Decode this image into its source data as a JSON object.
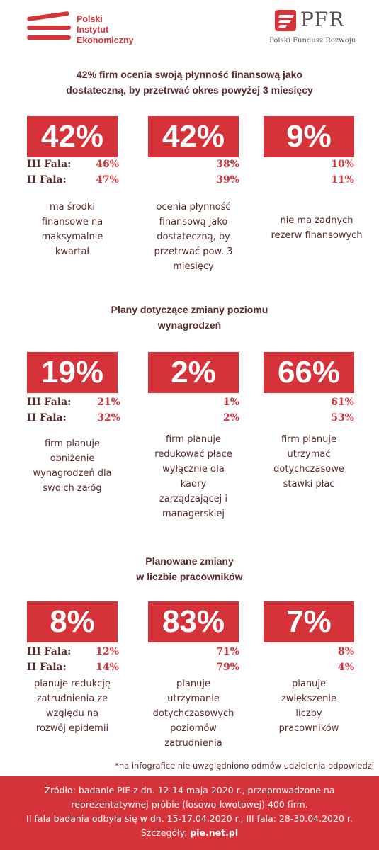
{
  "logos": {
    "pie": [
      "Polski",
      "Instytut",
      "Ekonomiczny"
    ],
    "pfr": {
      "name": "PFR",
      "subtitle": "Polski Fundusz Rozwoju"
    }
  },
  "labels": {
    "wave3": "III Fala:",
    "wave2": "II Fala:"
  },
  "sections": [
    {
      "title": [
        "42% firm ocenia swoją płynność finansową jako",
        "dostateczną, by przetrwać okres powyżej 3 miesięcy"
      ],
      "cards": [
        {
          "value": "42%",
          "wave3": "46%",
          "wave2": "47%",
          "desc": [
            "ma środki",
            "finansowe na",
            "maksymalnie",
            "kwartał"
          ]
        },
        {
          "value": "42%",
          "wave3": "38%",
          "wave2": "39%",
          "desc": [
            "ocenia płynność",
            "finansową jako",
            "dostateczną, by",
            "przetrwać pow. 3",
            "miesięcy"
          ]
        },
        {
          "value": "9%",
          "wave3": "10%",
          "wave2": "11%",
          "desc": [
            "nie ma żadnych",
            "rezerw finansowych"
          ]
        }
      ]
    },
    {
      "title": [
        "Plany dotyczące zmiany poziomu",
        "wynagrodzeń"
      ],
      "cards": [
        {
          "value": "19%",
          "wave3": "21%",
          "wave2": "32%",
          "desc": [
            "firm planuje",
            "obniżenie",
            "wynagrodzeń dla",
            "swoich załóg"
          ]
        },
        {
          "value": "2%",
          "wave3": "1%",
          "wave2": "2%",
          "desc": [
            "firm planuje",
            "redukować płace",
            "wyłącznie dla",
            "kadry",
            "zarządzającej i",
            "managerskiej"
          ]
        },
        {
          "value": "66%",
          "wave3": "61%",
          "wave2": "53%",
          "desc": [
            "firm planuje",
            "utrzymać",
            "dotychczasowe",
            "stawki płac"
          ]
        }
      ]
    },
    {
      "title": [
        "Planowane zmiany",
        "w liczbie pracowników"
      ],
      "cards": [
        {
          "value": "8%",
          "wave3": "12%",
          "wave2": "14%",
          "desc": [
            "planuje redukcję",
            "zatrudnienia ze",
            "względu na",
            "rozwój epidemii"
          ]
        },
        {
          "value": "83%",
          "wave3": "71%",
          "wave2": "79%",
          "desc": [
            "planuje",
            "utrzymanie",
            "dotychczasowych",
            "poziomów",
            "zatrudnienia"
          ]
        },
        {
          "value": "7%",
          "wave3": "8%",
          "wave2": "4%",
          "desc": [
            "planuje",
            "zwiększenie",
            "liczby",
            "pracowników"
          ]
        }
      ]
    }
  ],
  "footnote": "*na infografice nie uwzględniono odmów udzielenia odpowiedzi",
  "footer": {
    "lines": [
      "Źródło: badanie PIE z dn. 12-14 maja 2020 r., przeprowadzone na",
      "reprezentatywnej próbie (losowo-kwotowej) 400 firm.",
      "II fala badania odbyła się w dn. 15-17.04.2020 r., III fala: 28-30.04.2020 r."
    ],
    "details_label": "Szczegóły:",
    "details_link": "pie.net.pl"
  },
  "colors": {
    "accent": "#d6323a",
    "text": "#5a2a2a"
  }
}
